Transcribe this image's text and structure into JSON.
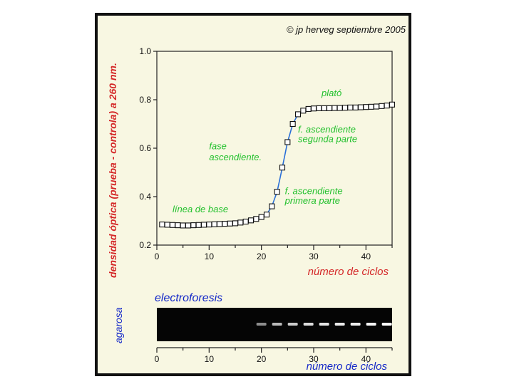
{
  "copyright": "© jp herveg septiembre 2005",
  "chart_data": [
    {
      "type": "line",
      "xlabel": "número de ciclos",
      "ylabel": "densidad óptica (prueba - controla) a 260 nm.",
      "xlim": [
        0,
        45
      ],
      "ylim": [
        0.2,
        1.0
      ],
      "xticks": [
        0,
        10,
        20,
        30,
        40
      ],
      "yticks": [
        "0.2",
        "0.4",
        "0.6",
        "0.8",
        "1.0"
      ],
      "grid": false,
      "marker": "open-square",
      "line_color": "#2a6fd8",
      "x": [
        1,
        2,
        3,
        4,
        5,
        6,
        7,
        8,
        9,
        10,
        11,
        12,
        13,
        14,
        15,
        16,
        17,
        18,
        19,
        20,
        21,
        22,
        23,
        24,
        25,
        26,
        27,
        28,
        29,
        30,
        31,
        32,
        33,
        34,
        35,
        36,
        37,
        38,
        39,
        40,
        41,
        42,
        43,
        44,
        45
      ],
      "y": [
        0.285,
        0.284,
        0.283,
        0.282,
        0.281,
        0.281,
        0.282,
        0.283,
        0.284,
        0.285,
        0.286,
        0.287,
        0.288,
        0.289,
        0.29,
        0.293,
        0.297,
        0.302,
        0.308,
        0.316,
        0.326,
        0.36,
        0.42,
        0.52,
        0.625,
        0.7,
        0.74,
        0.755,
        0.762,
        0.764,
        0.765,
        0.765,
        0.765,
        0.766,
        0.766,
        0.767,
        0.768,
        0.768,
        0.769,
        0.77,
        0.771,
        0.772,
        0.774,
        0.776,
        0.78
      ],
      "annotations": [
        {
          "text": "plató",
          "x": 31.5,
          "y": 0.815
        },
        {
          "text": "f. ascendiente",
          "x": 27,
          "y": 0.665
        },
        {
          "text": "segunda parte",
          "x": 27,
          "y": 0.625
        },
        {
          "text": "fase",
          "x": 10,
          "y": 0.596
        },
        {
          "text": "ascendiente.",
          "x": 10,
          "y": 0.55
        },
        {
          "text": "f. ascendiente",
          "x": 24.5,
          "y": 0.41
        },
        {
          "text": "primera parte",
          "x": 24.5,
          "y": 0.37
        },
        {
          "text": "línea de base",
          "x": 3,
          "y": 0.335
        }
      ]
    },
    {
      "type": "gel",
      "title": "electroforesis",
      "ylabel": "agarosa",
      "xlabel": "número de ciclos",
      "xlim": [
        0,
        45
      ],
      "xticks": [
        0,
        10,
        20,
        30,
        40
      ],
      "bands": [
        {
          "cycle": 20,
          "intensity": 0.35
        },
        {
          "cycle": 23,
          "intensity": 0.6
        },
        {
          "cycle": 26,
          "intensity": 0.7
        },
        {
          "cycle": 29,
          "intensity": 0.8
        },
        {
          "cycle": 32,
          "intensity": 0.85
        },
        {
          "cycle": 35,
          "intensity": 0.88
        },
        {
          "cycle": 38,
          "intensity": 0.9
        },
        {
          "cycle": 41,
          "intensity": 0.95
        },
        {
          "cycle": 44,
          "intensity": 1.0
        }
      ]
    }
  ]
}
